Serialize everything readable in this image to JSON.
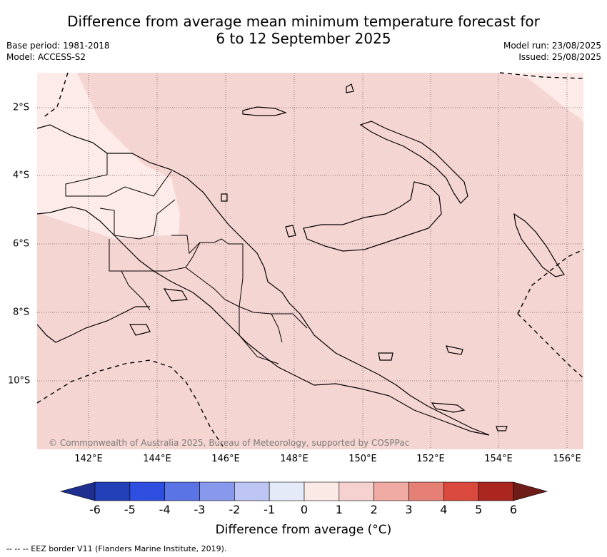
{
  "title_line1": "Difference from average mean minimum temperature forecast for",
  "title_line2": "6 to 12 September 2025",
  "base_period": "Base period: 1981-2018",
  "model": "Model: ACCESS-S2",
  "model_run": "Model run: 23/08/2025",
  "issued": "Issued: 25/08/2025",
  "lon_labels": [
    "142°E",
    "144°E",
    "146°E",
    "148°E",
    "150°E",
    "152°E",
    "154°E",
    "156°E"
  ],
  "lat_labels": [
    "2°S",
    "4°S",
    "6°S",
    "8°S",
    "10°S"
  ],
  "copyright": "© Commonwealth of Australia 2025, Bureau of Meteorology, supported by COSPPac",
  "colorbar": {
    "ticks": [
      "-6",
      "-5",
      "-4",
      "-3",
      "-2",
      "-1",
      "0",
      "1",
      "2",
      "3",
      "4",
      "5",
      "6"
    ],
    "colors": [
      "#1f2f8f",
      "#2340b8",
      "#2e4ee0",
      "#5a74e6",
      "#8898ec",
      "#bcc5f3",
      "#e5eaf9",
      "#fbe9e6",
      "#f5d2cf",
      "#efaaa4",
      "#e67f74",
      "#d9493e",
      "#ac2620",
      "#6e1c18"
    ],
    "label": "Difference from average (°C)"
  },
  "shading": {
    "dominant": "#f5d5d2",
    "light": "#fcebe8",
    "dominant_class": "1 to 2",
    "light_class": "0 to 1"
  },
  "footnote": "-- -- -- EEZ border V11 (Flanders Marine Institute, 2019)."
}
